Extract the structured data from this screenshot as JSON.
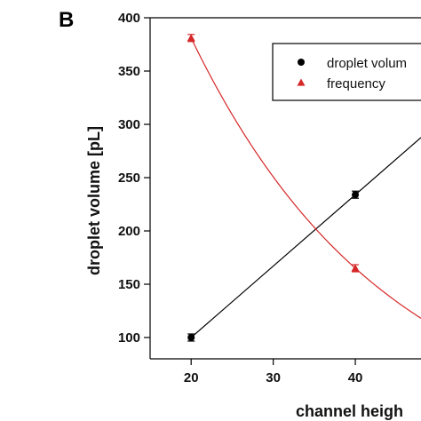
{
  "panel_label": "B",
  "chart_data": {
    "type": "scatter",
    "xlabel": "channel heigh",
    "ylabel": "droplet volume [pL]",
    "xlim": [
      15,
      48
    ],
    "ylim": [
      80,
      400
    ],
    "x_ticks": [
      "20",
      "30",
      "40"
    ],
    "y_ticks": [
      "100",
      "150",
      "200",
      "250",
      "300",
      "350",
      "400"
    ],
    "series": [
      {
        "name": "droplet volum",
        "marker": "circle",
        "color": "#000000",
        "x": [
          20,
          40
        ],
        "y": [
          100,
          234
        ],
        "fit": "linear"
      },
      {
        "name": "frequency",
        "marker": "triangle",
        "color": "#d62728",
        "x": [
          20,
          40
        ],
        "y": [
          381,
          165
        ],
        "fit": "curve"
      }
    ],
    "legend_position": "top-right",
    "grid": false
  }
}
